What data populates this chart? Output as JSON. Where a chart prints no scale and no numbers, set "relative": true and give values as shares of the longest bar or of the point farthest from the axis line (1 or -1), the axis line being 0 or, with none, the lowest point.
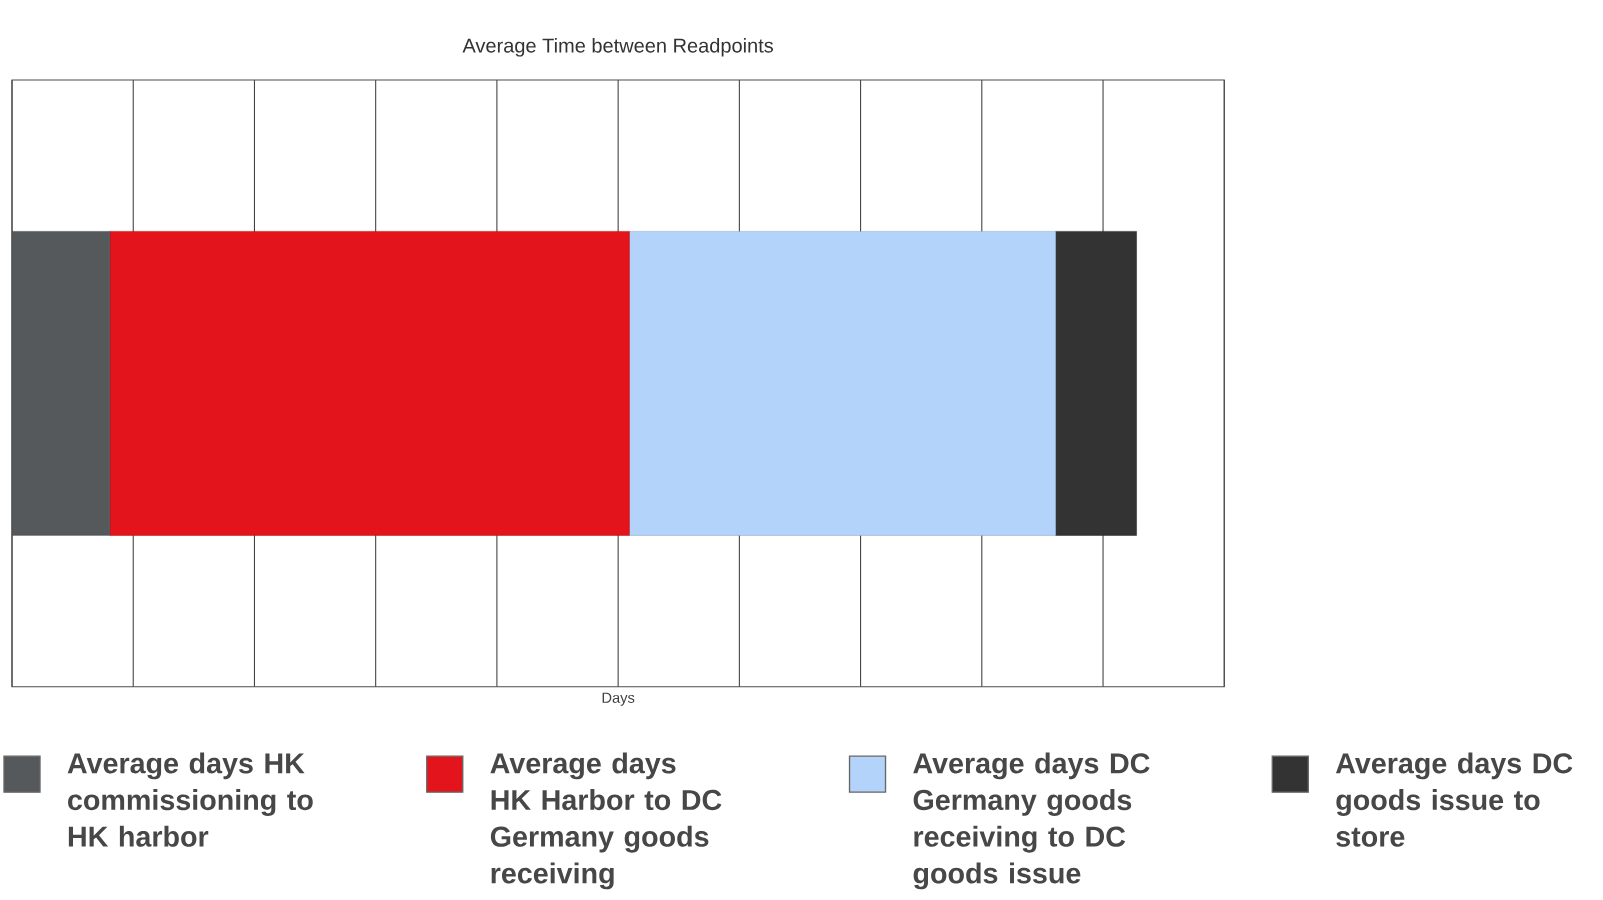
{
  "chart_data": {
    "type": "bar",
    "orientation": "horizontal",
    "stacked": true,
    "relative": true,
    "title": "Average Time between Readpoints",
    "xlabel": "Days",
    "categories": [
      null
    ],
    "series": [
      {
        "name": "Average days HK commissioning to HK harbor",
        "color": "#55595c",
        "values": [
          0.087
        ]
      },
      {
        "name": "Average days HK Harbor to DC Germany goods receiving",
        "color": "#e3141b",
        "values": [
          0.462
        ]
      },
      {
        "name": "Average days DC Germany goods receiving to DC goods issue",
        "color": "#b3d3fa",
        "values": [
          0.379
        ]
      },
      {
        "name": "Average days DC goods issue to store",
        "color": "#333333",
        "values": [
          0.072
        ]
      }
    ],
    "grid": true,
    "legend": "bottom"
  }
}
